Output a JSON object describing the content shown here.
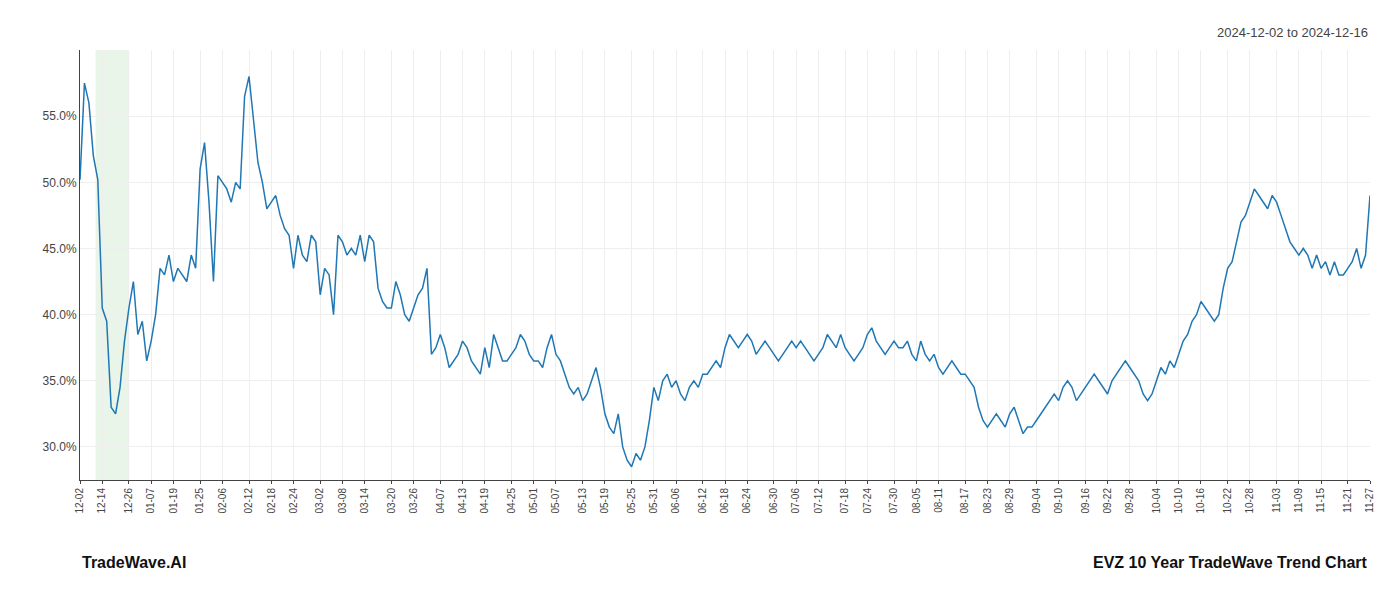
{
  "chart_data": {
    "type": "line",
    "title": "EVZ 10 Year TradeWave Trend Chart",
    "subtitle": "2024-12-02 to 2024-12-16",
    "annotations": [
      "TradeWave.AI"
    ],
    "categories": [
      "12-02",
      null,
      null,
      null,
      null,
      "12-14",
      null,
      null,
      null,
      null,
      null,
      "12-26",
      null,
      null,
      null,
      null,
      "01-07",
      null,
      null,
      null,
      null,
      "01-19",
      null,
      null,
      null,
      null,
      null,
      "01-25",
      null,
      null,
      null,
      null,
      "02-06",
      null,
      null,
      null,
      null,
      null,
      "02-12",
      null,
      null,
      null,
      null,
      "02-18",
      null,
      null,
      null,
      null,
      "02-24",
      null,
      null,
      null,
      null,
      null,
      "03-02",
      null,
      null,
      null,
      null,
      "03-08",
      null,
      null,
      null,
      null,
      "03-14",
      null,
      null,
      null,
      null,
      null,
      "03-20",
      null,
      null,
      null,
      null,
      "03-26",
      null,
      null,
      null,
      null,
      null,
      "04-07",
      null,
      null,
      null,
      null,
      "04-13",
      null,
      null,
      null,
      null,
      "04-19",
      null,
      null,
      null,
      null,
      null,
      "04-25",
      null,
      null,
      null,
      null,
      "05-01",
      null,
      null,
      null,
      null,
      "05-07",
      null,
      null,
      null,
      null,
      null,
      "05-13",
      null,
      null,
      null,
      null,
      "05-19",
      null,
      null,
      null,
      null,
      null,
      "05-25",
      null,
      null,
      null,
      null,
      "05-31",
      null,
      null,
      null,
      null,
      "06-06",
      null,
      null,
      null,
      null,
      null,
      "06-12",
      null,
      null,
      null,
      null,
      "06-18",
      null,
      null,
      null,
      null,
      "06-24",
      null,
      null,
      null,
      null,
      null,
      "06-30",
      null,
      null,
      null,
      null,
      "07-06",
      null,
      null,
      null,
      null,
      "07-12",
      null,
      null,
      null,
      null,
      null,
      "07-18",
      null,
      null,
      null,
      null,
      "07-24",
      null,
      null,
      null,
      null,
      null,
      "07-30",
      null,
      null,
      null,
      null,
      "08-05",
      null,
      null,
      null,
      null,
      "08-11",
      null,
      null,
      null,
      null,
      null,
      "08-17",
      null,
      null,
      null,
      null,
      "08-23",
      null,
      null,
      null,
      null,
      "08-29",
      null,
      null,
      null,
      null,
      null,
      "09-04",
      null,
      null,
      null,
      null,
      "09-10",
      null,
      null,
      null,
      null,
      null,
      "09-16",
      null,
      null,
      null,
      null,
      "09-22",
      null,
      null,
      null,
      null,
      "09-28",
      null,
      null,
      null,
      null,
      null,
      "10-04",
      null,
      null,
      null,
      null,
      "10-10",
      null,
      null,
      null,
      null,
      "10-16",
      null,
      null,
      null,
      null,
      null,
      "10-22",
      null,
      null,
      null,
      null,
      "10-28",
      null,
      null,
      null,
      null,
      null,
      "11-03",
      null,
      null,
      null,
      null,
      "11-09",
      null,
      null,
      null,
      null,
      "11-15",
      null,
      null,
      null,
      null,
      null,
      "11-21",
      null,
      null,
      null,
      null,
      "11-27"
    ],
    "values": [
      50.2,
      57.5,
      56.0,
      52.0,
      50.2,
      40.5,
      39.5,
      33.0,
      32.5,
      34.5,
      38.0,
      40.5,
      42.5,
      38.5,
      39.5,
      36.5,
      38.0,
      40.0,
      43.5,
      43.0,
      44.5,
      42.5,
      43.5,
      43.0,
      42.5,
      44.5,
      43.5,
      51.0,
      53.0,
      48.5,
      42.5,
      50.5,
      50.0,
      49.5,
      48.5,
      50.0,
      49.5,
      56.5,
      58.0,
      55.0,
      51.5,
      50.0,
      48.0,
      48.5,
      49.0,
      47.5,
      46.5,
      46.0,
      43.5,
      46.0,
      44.5,
      44.0,
      46.0,
      45.5,
      41.5,
      43.5,
      43.0,
      40.0,
      46.0,
      45.5,
      44.5,
      45.0,
      44.5,
      46.0,
      44.0,
      46.0,
      45.5,
      42.0,
      41.0,
      40.5,
      40.5,
      42.5,
      41.5,
      40.0,
      39.5,
      40.5,
      41.5,
      42.0,
      43.5,
      37.0,
      37.5,
      38.5,
      37.5,
      36.0,
      36.5,
      37.0,
      38.0,
      37.5,
      36.5,
      36.0,
      35.5,
      37.5,
      36.0,
      38.5,
      37.5,
      36.5,
      36.5,
      37.0,
      37.5,
      38.5,
      38.0,
      37.0,
      36.5,
      36.5,
      36.0,
      37.5,
      38.5,
      37.0,
      36.5,
      35.5,
      34.5,
      34.0,
      34.5,
      33.5,
      34.0,
      35.0,
      36.0,
      34.5,
      32.5,
      31.5,
      31.0,
      32.5,
      30.0,
      29.0,
      28.5,
      29.5,
      29.0,
      30.0,
      32.0,
      34.5,
      33.5,
      35.0,
      35.5,
      34.5,
      35.0,
      34.0,
      33.5,
      34.5,
      35.0,
      34.5,
      35.5,
      35.5,
      36.0,
      36.5,
      36.0,
      37.5,
      38.5,
      38.0,
      37.5,
      38.0,
      38.5,
      38.0,
      37.0,
      37.5,
      38.0,
      37.5,
      37.0,
      36.5,
      37.0,
      37.5,
      38.0,
      37.5,
      38.0,
      37.5,
      37.0,
      36.5,
      37.0,
      37.5,
      38.5,
      38.0,
      37.5,
      38.5,
      37.5,
      37.0,
      36.5,
      37.0,
      37.5,
      38.5,
      39.0,
      38.0,
      37.5,
      37.0,
      37.5,
      38.0,
      37.5,
      37.5,
      38.0,
      37.0,
      36.5,
      38.0,
      37.0,
      36.5,
      37.0,
      36.0,
      35.5,
      36.0,
      36.5,
      36.0,
      35.5,
      35.5,
      35.0,
      34.5,
      33.0,
      32.0,
      31.5,
      32.0,
      32.5,
      32.0,
      31.5,
      32.5,
      33.0,
      32.0,
      31.0,
      31.5,
      31.5,
      32.0,
      32.5,
      33.0,
      33.5,
      34.0,
      33.5,
      34.5,
      35.0,
      34.5,
      33.5,
      34.0,
      34.5,
      35.0,
      35.5,
      35.0,
      34.5,
      34.0,
      35.0,
      35.5,
      36.0,
      36.5,
      36.0,
      35.5,
      35.0,
      34.0,
      33.5,
      34.0,
      35.0,
      36.0,
      35.5,
      36.5,
      36.0,
      37.0,
      38.0,
      38.5,
      39.5,
      40.0,
      41.0,
      40.5,
      40.0,
      39.5,
      40.0,
      42.0,
      43.5,
      44.0,
      45.5,
      47.0,
      47.5,
      48.5,
      49.5,
      49.0,
      48.5,
      48.0,
      49.0,
      48.5,
      47.5,
      46.5,
      45.5,
      45.0,
      44.5,
      45.0,
      44.5,
      43.5,
      44.5,
      43.5,
      44.0,
      43.0,
      44.0,
      43.0,
      43.0,
      43.5,
      44.0,
      45.0,
      43.5,
      44.5,
      49.0
    ],
    "highlight": {
      "x": [
        3.492,
        11.058
      ],
      "color": "#c8e6c9"
    },
    "ylim": [
      27.5,
      60.0
    ],
    "yticks": [
      {
        "value": 30.0,
        "label": "30.0%"
      },
      {
        "value": 35.0,
        "label": "35.0%"
      },
      {
        "value": 40.0,
        "label": "40.0%"
      },
      {
        "value": 45.0,
        "label": "45.0%"
      },
      {
        "value": 50.0,
        "label": "50.0%"
      },
      {
        "value": 55.0,
        "label": "55.0%"
      }
    ],
    "grid": true
  }
}
